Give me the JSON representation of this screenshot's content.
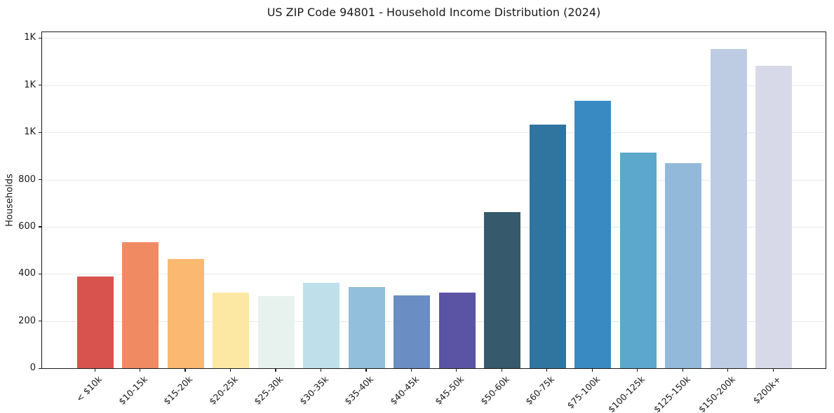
{
  "figure": {
    "title": "US ZIP Code 94801 - Household Income Distribution (2024)",
    "ylabel": "Households"
  },
  "chart_data": {
    "type": "bar",
    "title": "US ZIP Code 94801 - Household Income Distribution (2024)",
    "xlabel": "",
    "ylabel": "Households",
    "categories": [
      "< $10k",
      "$10-15k",
      "$15-20k",
      "$20-25k",
      "$25-30k",
      "$30-35k",
      "$35-40k",
      "$40-45k",
      "$45-50k",
      "$50-60k",
      "$60-75k",
      "$75-100k",
      "$100-125k",
      "$125-150k",
      "$150-200k",
      "$200k+"
    ],
    "values": [
      388,
      535,
      464,
      320,
      305,
      362,
      344,
      308,
      320,
      662,
      1033,
      1134,
      915,
      871,
      1355,
      1283
    ],
    "bar_colors": [
      "#d9534e",
      "#f08a62",
      "#fbb871",
      "#fde8a3",
      "#e7f2ef",
      "#bfe0ea",
      "#92bfdc",
      "#6a8ec4",
      "#5b54a4",
      "#36596b",
      "#2f75a0",
      "#398ac3",
      "#5ca7cc",
      "#93b9da",
      "#bdcce3",
      "#d8d9e8"
    ],
    "ylim": [
      0,
      1425
    ],
    "yticks": [
      0,
      200,
      400,
      600,
      800,
      1000,
      1200,
      1400
    ],
    "ytick_labels": [
      "0",
      "200",
      "400",
      "600",
      "800",
      "1K",
      "1K",
      "1K"
    ],
    "xtick_rotation": 45,
    "grid": "horizontal-only",
    "grid_color": "#e8e8e8",
    "legend": "none",
    "axis_color": "#1a1a1a",
    "background_color": "#ffffff"
  }
}
